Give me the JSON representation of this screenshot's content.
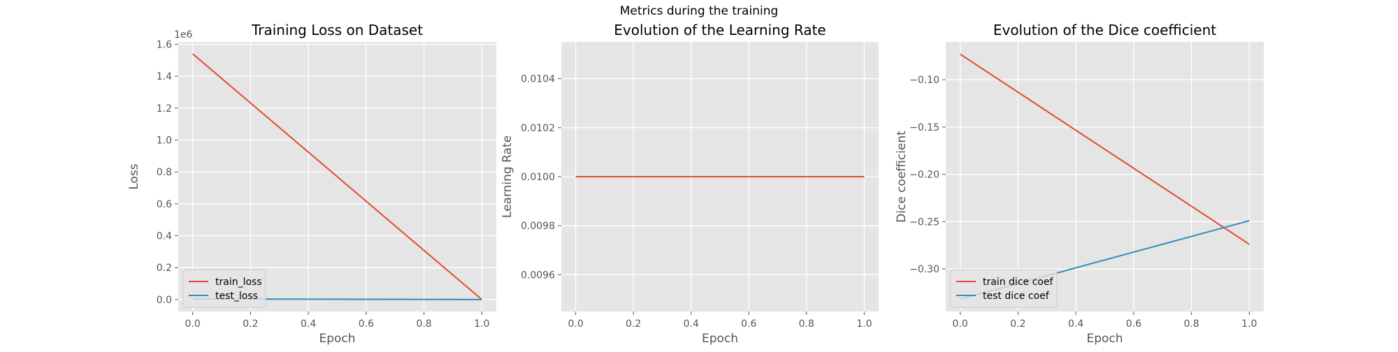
{
  "figure": {
    "suptitle": "Metrics during the training"
  },
  "chart_data": [
    {
      "type": "line",
      "title": "Training Loss on Dataset",
      "xlabel": "Epoch",
      "ylabel": "Loss",
      "offset_label": "1e6",
      "xlim": [
        -0.05,
        1.05
      ],
      "ylim": [
        -75000,
        1615000
      ],
      "x_ticks": [
        0.0,
        0.2,
        0.4,
        0.6,
        0.8,
        1.0
      ],
      "x_tick_labels": [
        "0.0",
        "0.2",
        "0.4",
        "0.6",
        "0.8",
        "1.0"
      ],
      "y_ticks": [
        0,
        200000,
        400000,
        600000,
        800000,
        1000000,
        1200000,
        1400000,
        1600000
      ],
      "y_tick_labels": [
        "0.0",
        "0.2",
        "0.4",
        "0.6",
        "0.8",
        "1.0",
        "1.2",
        "1.4",
        "1.6"
      ],
      "grid": true,
      "legend_position": "lower-left",
      "series": [
        {
          "name": "train_loss",
          "color": "#E24A33",
          "x": [
            0,
            1
          ],
          "y": [
            1540000,
            0
          ]
        },
        {
          "name": "test_loss",
          "color": "#348ABD",
          "x": [
            0,
            1
          ],
          "y": [
            4000,
            0
          ]
        }
      ]
    },
    {
      "type": "line",
      "title": "Evolution of the Learning Rate",
      "xlabel": "Epoch",
      "ylabel": "Learning Rate",
      "xlim": [
        -0.05,
        1.05
      ],
      "ylim": [
        0.00945,
        0.01055
      ],
      "x_ticks": [
        0.0,
        0.2,
        0.4,
        0.6,
        0.8,
        1.0
      ],
      "x_tick_labels": [
        "0.0",
        "0.2",
        "0.4",
        "0.6",
        "0.8",
        "1.0"
      ],
      "y_ticks": [
        0.0096,
        0.0098,
        0.01,
        0.0102,
        0.0104
      ],
      "y_tick_labels": [
        "0.0096",
        "0.0098",
        "0.0100",
        "0.0102",
        "0.0104"
      ],
      "grid": true,
      "series": [
        {
          "color": "#E24A33",
          "x": [
            0,
            1
          ],
          "y": [
            0.01,
            0.01
          ]
        }
      ]
    },
    {
      "type": "line",
      "title": "Evolution of the Dice coefficient",
      "xlabel": "Epoch",
      "ylabel": "Dice coefficient",
      "xlim": [
        -0.05,
        1.05
      ],
      "ylim": [
        -0.345,
        -0.06
      ],
      "x_ticks": [
        0.0,
        0.2,
        0.4,
        0.6,
        0.8,
        1.0
      ],
      "x_tick_labels": [
        "0.0",
        "0.2",
        "0.4",
        "0.6",
        "0.8",
        "1.0"
      ],
      "y_ticks": [
        -0.3,
        -0.25,
        -0.2,
        -0.15,
        -0.1
      ],
      "y_tick_labels": [
        "−0.30",
        "−0.25",
        "−0.20",
        "−0.15",
        "−0.10"
      ],
      "grid": true,
      "legend_position": "lower-left",
      "series": [
        {
          "name": "train dice coef",
          "color": "#E24A33",
          "x": [
            0,
            1
          ],
          "y": [
            -0.073,
            -0.274
          ]
        },
        {
          "name": "test dice coef",
          "color": "#348ABD",
          "x": [
            0,
            1
          ],
          "y": [
            -0.332,
            -0.249
          ]
        }
      ]
    }
  ]
}
